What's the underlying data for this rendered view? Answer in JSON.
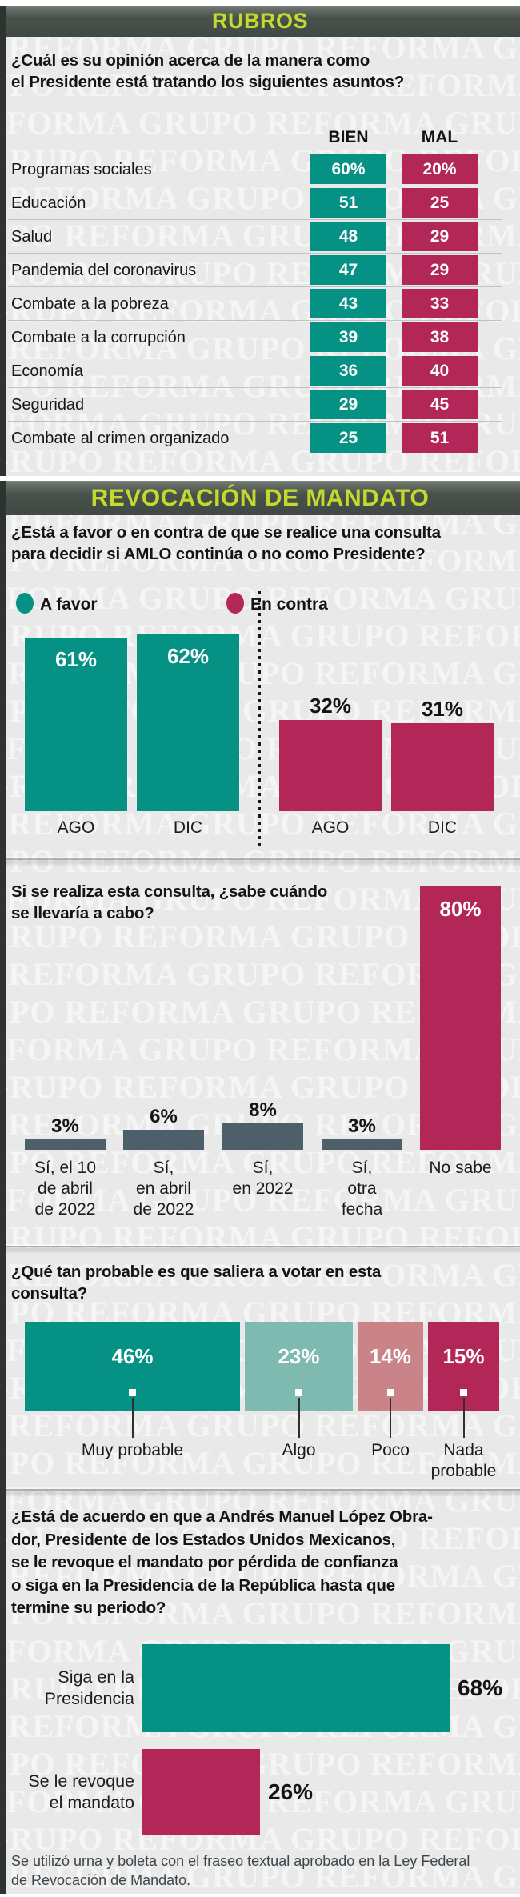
{
  "colors": {
    "teal": "#059184",
    "crimson": "#b22757",
    "lightTeal": "#7fbab0",
    "rose": "#cb838a",
    "slate": "#4d5f68",
    "lime": "#c3d92e",
    "headerDark": "#49514b",
    "panelBg": "#e9e9e9",
    "white": "#ffffff",
    "black": "#141414"
  },
  "watermark_text": "GRUPO REFORMA  GRUPO REFORMA  GRUPO REFORMA  GRUPO REFORMA",
  "rubros": {
    "header": "RUBROS",
    "question": [
      "¿Cuál es su opinión acerca de la manera como",
      "el Presidente está tratando los siguientes asuntos?"
    ],
    "col_headers": {
      "bien": "BIEN",
      "mal": "MAL"
    },
    "rows": [
      {
        "label": "Programas sociales",
        "bien": "60%",
        "mal": "20%"
      },
      {
        "label": "Educación",
        "bien": "51",
        "mal": "25"
      },
      {
        "label": "Salud",
        "bien": "48",
        "mal": "29"
      },
      {
        "label": "Pandemia del coronavirus",
        "bien": "47",
        "mal": "29"
      },
      {
        "label": "Combate a la pobreza",
        "bien": "43",
        "mal": "33"
      },
      {
        "label": "Combate a la corrupción",
        "bien": "39",
        "mal": "38"
      },
      {
        "label": "Economía",
        "bien": "36",
        "mal": "40"
      },
      {
        "label": "Seguridad",
        "bien": "29",
        "mal": "45"
      },
      {
        "label": "Combate al crimen organizado",
        "bien": "25",
        "mal": "51"
      }
    ]
  },
  "revocacion": {
    "header": "REVOCACIÓN DE MANDATO",
    "question": [
      "¿Está a favor o en contra de que se realice una consulta",
      "para decidir si AMLO continúa o no como Presidente?"
    ],
    "legend": [
      {
        "label": "A favor",
        "color": "teal"
      },
      {
        "label": "En contra",
        "color": "crimson"
      }
    ],
    "bars": [
      {
        "group": "favor",
        "month": "AGO",
        "label": "61%",
        "value": 61
      },
      {
        "group": "favor",
        "month": "DIC",
        "label": "62%",
        "value": 62
      },
      {
        "group": "contra",
        "month": "AGO",
        "label": "32%",
        "value": 32
      },
      {
        "group": "contra",
        "month": "DIC",
        "label": "31%",
        "value": 31
      }
    ]
  },
  "cuando": {
    "question": [
      "Si se realiza esta consulta, ¿sabe cuándo",
      "se llevaría a cabo?"
    ],
    "bars": [
      {
        "label": [
          "Sí, el 10",
          "de abril",
          "de 2022"
        ],
        "pct": "3%",
        "value": 3
      },
      {
        "label": [
          "Sí,",
          "en abril",
          "de 2022"
        ],
        "pct": "6%",
        "value": 6
      },
      {
        "label": [
          "Sí,",
          "en 2022"
        ],
        "pct": "8%",
        "value": 8
      },
      {
        "label": [
          "Sí,",
          "otra",
          "fecha"
        ],
        "pct": "3%",
        "value": 3
      },
      {
        "label": [
          "No sabe"
        ],
        "pct": "80%",
        "value": 80
      }
    ]
  },
  "probable": {
    "question": [
      "¿Qué tan probable es que saliera a votar en esta",
      "consulta?"
    ],
    "segments": [
      {
        "label": [
          "Muy probable"
        ],
        "pct": "46%",
        "value": 46,
        "color": "teal"
      },
      {
        "label": [
          "Algo"
        ],
        "pct": "23%",
        "value": 23,
        "color": "lightTeal"
      },
      {
        "label": [
          "Poco"
        ],
        "pct": "14%",
        "value": 14,
        "color": "rose"
      },
      {
        "label": [
          "Nada",
          "probable"
        ],
        "pct": "15%",
        "value": 15,
        "color": "crimson"
      }
    ]
  },
  "acuerdo": {
    "question": [
      "¿Está de acuerdo en que a Andrés Manuel López Obra-",
      "dor, Presidente de los Estados Unidos Mexicanos,",
      "se le revoque el mandato por pérdida de confianza",
      "o siga en la Presidencia de la República hasta que",
      "termine su periodo?"
    ],
    "bars": [
      {
        "label": [
          "Siga en la",
          "Presidencia"
        ],
        "pct": "68%",
        "value": 68,
        "color": "teal"
      },
      {
        "label": [
          "Se le revoque",
          "el mandato"
        ],
        "pct": "26%",
        "value": 26,
        "color": "crimson"
      }
    ],
    "footnote": [
      "Se utilizó urna y boleta con el fraseo textual aprobado en la Ley Federal",
      "de Revocación de Mandato."
    ]
  },
  "chart_data": [
    {
      "type": "table",
      "title": "RUBROS — ¿Cuál es su opinión acerca de la manera como el Presidente está tratando los siguientes asuntos?",
      "columns": [
        "BIEN",
        "MAL"
      ],
      "categories": [
        "Programas sociales",
        "Educación",
        "Salud",
        "Pandemia del coronavirus",
        "Combate a la pobreza",
        "Combate a la corrupción",
        "Economía",
        "Seguridad",
        "Combate al crimen organizado"
      ],
      "series": [
        {
          "name": "BIEN",
          "values": [
            60,
            51,
            48,
            47,
            43,
            39,
            36,
            29,
            25
          ]
        },
        {
          "name": "MAL",
          "values": [
            20,
            25,
            29,
            29,
            33,
            38,
            40,
            45,
            51
          ]
        }
      ],
      "unit": "%"
    },
    {
      "type": "bar",
      "title": "¿Está a favor o en contra de que se realice una consulta para decidir si AMLO continúa o no como Presidente?",
      "categories": [
        "AGO",
        "DIC"
      ],
      "series": [
        {
          "name": "A favor",
          "values": [
            61,
            62
          ]
        },
        {
          "name": "En contra",
          "values": [
            32,
            31
          ]
        }
      ],
      "unit": "%",
      "legend_position": "top"
    },
    {
      "type": "bar",
      "title": "Si se realiza esta consulta, ¿sabe cuándo se llevaría a cabo?",
      "categories": [
        "Sí, el 10 de abril de 2022",
        "Sí, en abril de 2022",
        "Sí, en 2022",
        "Sí, otra fecha",
        "No sabe"
      ],
      "values": [
        3,
        6,
        8,
        3,
        80
      ],
      "unit": "%"
    },
    {
      "type": "bar",
      "subtype": "stacked-horizontal",
      "title": "¿Qué tan probable es que saliera a votar en esta consulta?",
      "categories": [
        "Muy probable",
        "Algo",
        "Poco",
        "Nada probable"
      ],
      "values": [
        46,
        23,
        14,
        15
      ],
      "unit": "%"
    },
    {
      "type": "bar",
      "subtype": "horizontal",
      "title": "¿Está de acuerdo en que a AMLO se le revoque el mandato o siga en la Presidencia hasta que termine su periodo?",
      "categories": [
        "Siga en la Presidencia",
        "Se le revoque el mandato"
      ],
      "values": [
        68,
        26
      ],
      "unit": "%"
    }
  ]
}
